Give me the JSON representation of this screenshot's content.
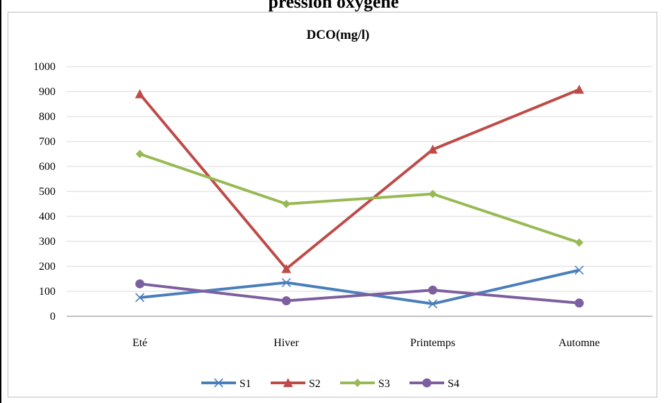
{
  "header": {
    "partial_title": "pression oxygène"
  },
  "chart_data": {
    "type": "line",
    "title": "DCO(mg/l)",
    "xlabel": "",
    "ylabel": "",
    "categories": [
      "Eté",
      "Hiver",
      "Printemps",
      "Automne"
    ],
    "ylim": [
      0,
      1000
    ],
    "yticks": [
      0,
      100,
      200,
      300,
      400,
      500,
      600,
      700,
      800,
      900,
      1000
    ],
    "grid": true,
    "legend_position": "bottom",
    "series": [
      {
        "name": "S1",
        "color": "#4a7ebb",
        "marker": "x-mark",
        "values": [
          75,
          135,
          50,
          185
        ]
      },
      {
        "name": "S2",
        "color": "#be4b48",
        "marker": "triangle",
        "values": [
          890,
          190,
          668,
          908
        ]
      },
      {
        "name": "S3",
        "color": "#98b954",
        "marker": "diamond",
        "values": [
          650,
          450,
          490,
          295
        ]
      },
      {
        "name": "S4",
        "color": "#7d5fa0",
        "marker": "circle",
        "values": [
          130,
          62,
          105,
          53
        ]
      }
    ]
  }
}
